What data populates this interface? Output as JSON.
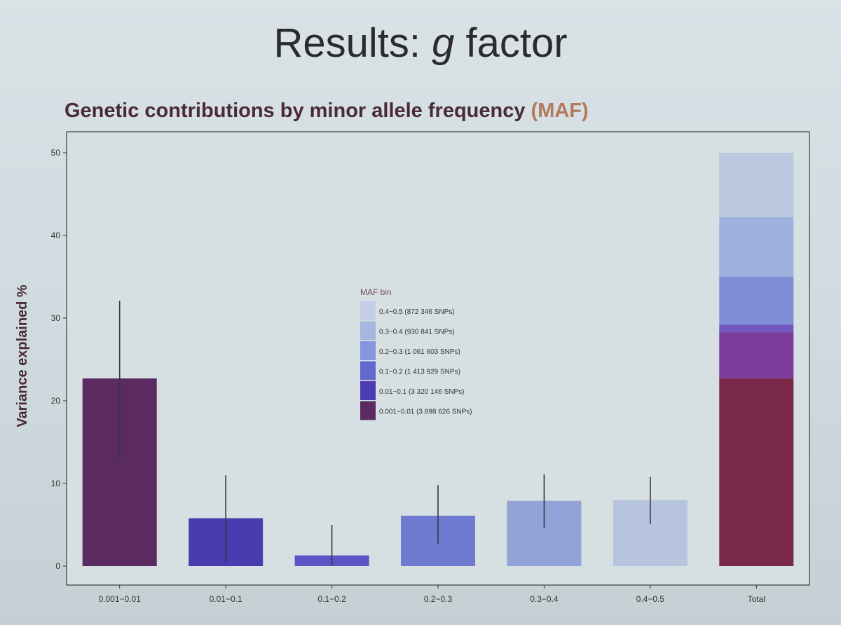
{
  "slide": {
    "title_prefix": "Results: ",
    "title_italic": "g",
    "title_suffix": " factor",
    "subtitle_main": "Genetic contributions by minor allele frequency ",
    "subtitle_accent": "(MAF)"
  },
  "chart_data": {
    "type": "bar",
    "title": "Genetic contributions by minor allele frequency (MAF)",
    "xlabel": "",
    "ylabel": "Variance explained %",
    "ylim": [
      0,
      52
    ],
    "yticks": [
      0,
      10,
      20,
      30,
      40,
      50
    ],
    "grid": false,
    "categories": [
      "0.001−0.01",
      "0.01−0.1",
      "0.1−0.2",
      "0.2−0.3",
      "0.3−0.4",
      "0.4−0.5",
      "Total"
    ],
    "values": [
      22.7,
      5.8,
      1.3,
      6.1,
      7.9,
      8.0,
      50.0
    ],
    "error_low": [
      13.1,
      0.5,
      0.1,
      2.7,
      4.6,
      5.1,
      null
    ],
    "error_high": [
      32.1,
      11.0,
      5.0,
      9.8,
      11.1,
      10.8,
      null
    ],
    "colors": [
      "#5a2a60",
      "#4a3cb0",
      "#5a55c6",
      "#6e7bd0",
      "#92a3d8",
      "#b7c4de",
      null
    ],
    "total_stack": [
      {
        "bin": "0.001−0.01",
        "value": 22.7,
        "color": "#7a2848"
      },
      {
        "bin": "0.01−0.1",
        "value": 5.6,
        "color": "#7a3c98"
      },
      {
        "bin": "0.1−0.2",
        "value": 0.9,
        "color": "#7058c0"
      },
      {
        "bin": "0.2−0.3",
        "value": 5.8,
        "color": "#7e8ed6"
      },
      {
        "bin": "0.3−0.4",
        "value": 7.2,
        "color": "#9eb0de"
      },
      {
        "bin": "0.4−0.5",
        "value": 7.8,
        "color": "#bcc7e0"
      }
    ],
    "legend": {
      "title": "MAF bin",
      "placement": "center",
      "entries": [
        {
          "label": "0.4−0.5 (872 346 SNPs)",
          "color": "#c2cee4"
        },
        {
          "label": "0.3−0.4 (930 841 SNPs)",
          "color": "#a6b6e0"
        },
        {
          "label": "0.2−0.3 (1 061 603 SNPs)",
          "color": "#8596da"
        },
        {
          "label": "0.1−0.2 (1 413 929 SNPs)",
          "color": "#6069cc"
        },
        {
          "label": "0.01−0.1 (3 320 146 SNPs)",
          "color": "#4c3cb2"
        },
        {
          "label": "0.001−0.01 (3 898 626 SNPs)",
          "color": "#5b2a62"
        }
      ]
    }
  }
}
